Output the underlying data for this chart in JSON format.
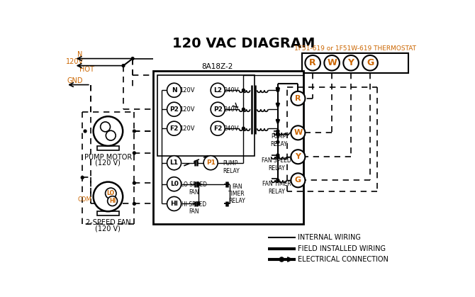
{
  "title": "120 VAC DIAGRAM",
  "title_fontsize": 14,
  "bg_color": "#ffffff",
  "line_color": "#000000",
  "orange_color": "#cc6600",
  "thermostat_label": "1F51-619 or 1F51W-619 THERMOSTAT",
  "control_box_label": "8A18Z-2",
  "terminal_labels": [
    "R",
    "W",
    "Y",
    "G"
  ],
  "pump_motor_label": "PUMP MOTOR",
  "pump_motor_label2": "(120 V)",
  "fan_label": "2-SPEED FAN",
  "fan_label2": "(120 V)",
  "legend_items": [
    {
      "label": "INTERNAL WIRING"
    },
    {
      "label": "FIELD INSTALLED WIRING"
    },
    {
      "label": "ELECTRICAL CONNECTION"
    }
  ]
}
